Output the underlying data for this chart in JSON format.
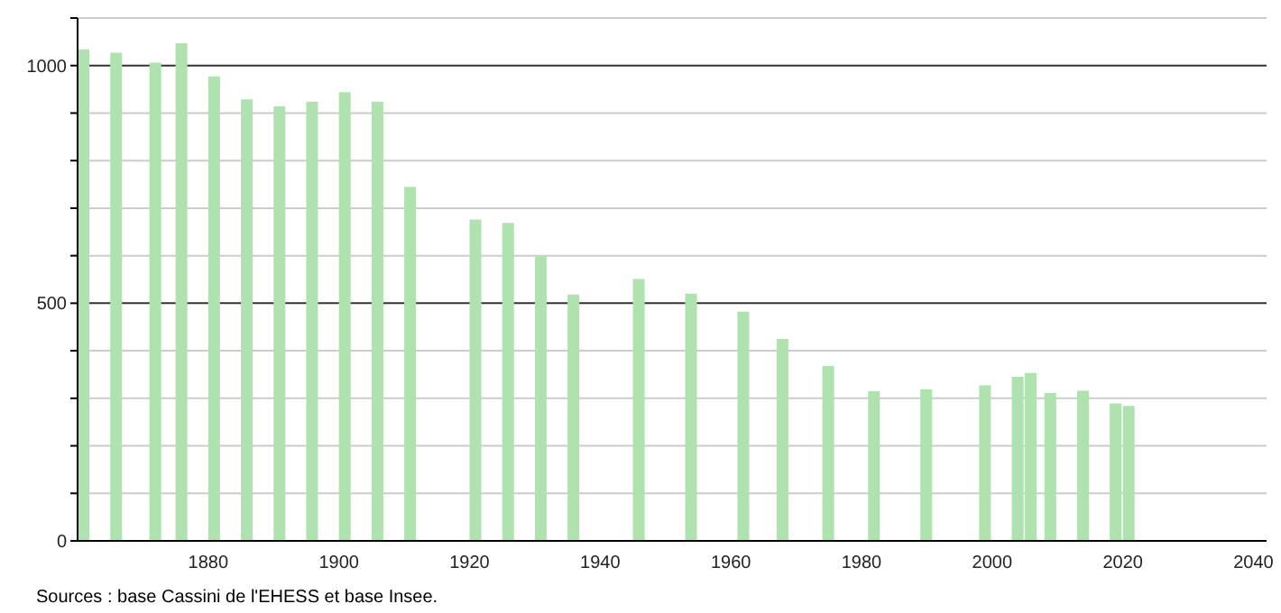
{
  "chart_data": {
    "type": "bar",
    "x": [
      1861,
      1866,
      1872,
      1876,
      1881,
      1886,
      1891,
      1896,
      1901,
      1906,
      1911,
      1921,
      1926,
      1931,
      1936,
      1946,
      1954,
      1962,
      1968,
      1975,
      1982,
      1990,
      1999,
      2004,
      2006,
      2009,
      2014,
      2019,
      2021
    ],
    "values": [
      1034,
      1027,
      1006,
      1047,
      977,
      929,
      914,
      924,
      944,
      924,
      745,
      676,
      669,
      599,
      518,
      551,
      520,
      482,
      425,
      368,
      315,
      319,
      327,
      345,
      353,
      311,
      316,
      289,
      284
    ],
    "color": "#b0e2b0",
    "xlim": [
      1860,
      2042
    ],
    "xticks": [
      1880,
      1900,
      1920,
      1940,
      1960,
      1980,
      2000,
      2020,
      2040
    ],
    "ylim": [
      0,
      1100
    ],
    "yticks": [
      0,
      {
        "value": 100,
        "label": null
      },
      {
        "value": 200,
        "label": null
      },
      {
        "value": 300,
        "label": null
      },
      {
        "value": 400,
        "label": null
      },
      500,
      {
        "value": 600,
        "label": null
      },
      {
        "value": 700,
        "label": null
      },
      {
        "value": 800,
        "label": null
      },
      {
        "value": 900,
        "label": null
      },
      1000,
      {
        "value": 1100,
        "label": null
      }
    ],
    "grid": "y",
    "annotations": [
      "Sources : base Cassini de l'EHESS et base Insee."
    ]
  }
}
